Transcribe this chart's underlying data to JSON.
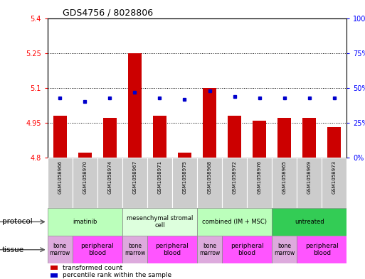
{
  "title": "GDS4756 / 8028806",
  "samples": [
    "GSM1058966",
    "GSM1058970",
    "GSM1058974",
    "GSM1058967",
    "GSM1058971",
    "GSM1058975",
    "GSM1058968",
    "GSM1058972",
    "GSM1058976",
    "GSM1058965",
    "GSM1058969",
    "GSM1058973"
  ],
  "transformed_counts": [
    4.98,
    4.82,
    4.97,
    5.25,
    4.98,
    4.82,
    5.1,
    4.98,
    4.96,
    4.97,
    4.97,
    4.93
  ],
  "percentile_ranks": [
    43,
    40,
    43,
    47,
    43,
    42,
    48,
    44,
    43,
    43,
    43,
    43
  ],
  "ylim_left": [
    4.8,
    5.4
  ],
  "ylim_right": [
    0,
    100
  ],
  "yticks_left": [
    4.8,
    4.95,
    5.1,
    5.25,
    5.4
  ],
  "yticks_right": [
    0,
    25,
    50,
    75,
    100
  ],
  "ytick_labels_left": [
    "4.8",
    "4.95",
    "5.1",
    "5.25",
    "5.4"
  ],
  "ytick_labels_right": [
    "0%",
    "25%",
    "50%",
    "75%",
    "100%"
  ],
  "bar_color": "#cc0000",
  "dot_color": "#0000cc",
  "bar_bottom": 4.8,
  "protocols": [
    {
      "label": "imatinib",
      "start": 0,
      "end": 3,
      "color": "#bbffbb"
    },
    {
      "label": "mesenchymal stromal\ncell",
      "start": 3,
      "end": 6,
      "color": "#ddffdd"
    },
    {
      "label": "combined (IM + MSC)",
      "start": 6,
      "end": 9,
      "color": "#bbffbb"
    },
    {
      "label": "untreated",
      "start": 9,
      "end": 12,
      "color": "#33cc55"
    }
  ],
  "tissues": [
    {
      "label": "bone\nmarrow",
      "start": 0,
      "end": 1,
      "color": "#ddaadd"
    },
    {
      "label": "peripheral\nblood",
      "start": 1,
      "end": 3,
      "color": "#ff55ff"
    },
    {
      "label": "bone\nmarrow",
      "start": 3,
      "end": 4,
      "color": "#ddaadd"
    },
    {
      "label": "peripheral\nblood",
      "start": 4,
      "end": 6,
      "color": "#ff55ff"
    },
    {
      "label": "bone\nmarrow",
      "start": 6,
      "end": 7,
      "color": "#ddaadd"
    },
    {
      "label": "peripheral\nblood",
      "start": 7,
      "end": 9,
      "color": "#ff55ff"
    },
    {
      "label": "bone\nmarrow",
      "start": 9,
      "end": 10,
      "color": "#ddaadd"
    },
    {
      "label": "peripheral\nblood",
      "start": 10,
      "end": 12,
      "color": "#ff55ff"
    }
  ],
  "legend_red": "transformed count",
  "legend_blue": "percentile rank within the sample",
  "xlabel_protocol": "protocol",
  "xlabel_tissue": "tissue",
  "bar_width": 0.55,
  "sample_box_color": "#cccccc",
  "grid_color": "black",
  "grid_style": ":"
}
